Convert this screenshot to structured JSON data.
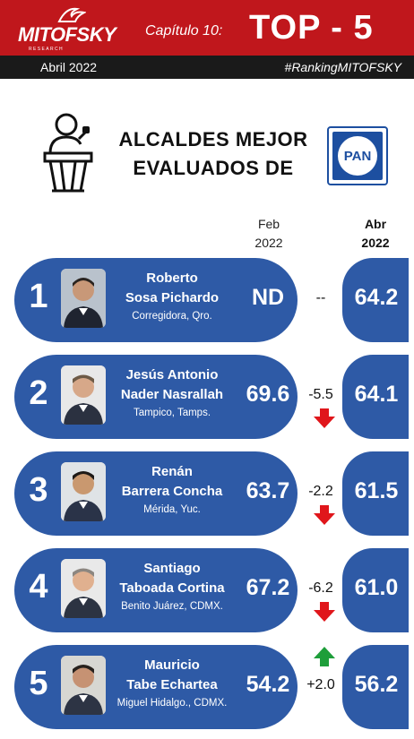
{
  "header": {
    "logo_text": "MITOFSKY",
    "logo_subtext": "RESEARCH",
    "chapter": "Capítulo 10:",
    "title": "TOP - 5",
    "date": "Abril 2022",
    "hashtag": "#RankingMITOFSKY"
  },
  "main": {
    "title_line1": "ALCALDES MEJOR",
    "title_line2": "EVALUADOS DE",
    "party_logo_text": "PAN"
  },
  "columns": {
    "feb_label": "Feb",
    "feb_year": "2022",
    "abr_label": "Abr",
    "abr_year": "2022"
  },
  "rows": [
    {
      "rank": "1",
      "name1": "Roberto",
      "name2": "Sosa Pichardo",
      "place": "Corregidora, Qro.",
      "feb": "ND",
      "change": "--",
      "abr": "64.2",
      "trend": "none"
    },
    {
      "rank": "2",
      "name1": "Jesús Antonio",
      "name2": "Nader Nasrallah",
      "place": "Tampico, Tamps.",
      "feb": "69.6",
      "change": "-5.5",
      "abr": "64.1",
      "trend": "down"
    },
    {
      "rank": "3",
      "name1": "Renán",
      "name2": "Barrera Concha",
      "place": "Mérida, Yuc.",
      "feb": "63.7",
      "change": "-2.2",
      "abr": "61.5",
      "trend": "down"
    },
    {
      "rank": "4",
      "name1": "Santiago",
      "name2": "Taboada Cortina",
      "place": "Benito Juárez, CDMX.",
      "feb": "67.2",
      "change": "-6.2",
      "abr": "61.0",
      "trend": "down"
    },
    {
      "rank": "5",
      "name1": "Mauricio",
      "name2": "Tabe Echartea",
      "place": "Miguel Hidalgo., CDMX.",
      "feb": "54.2",
      "change": "+2.0",
      "abr": "56.2",
      "trend": "up"
    }
  ],
  "colors": {
    "header_red": "#c0171c",
    "card_blue": "#2e5aa6",
    "down_arrow": "#e0161b",
    "up_arrow": "#1e9e3a"
  }
}
